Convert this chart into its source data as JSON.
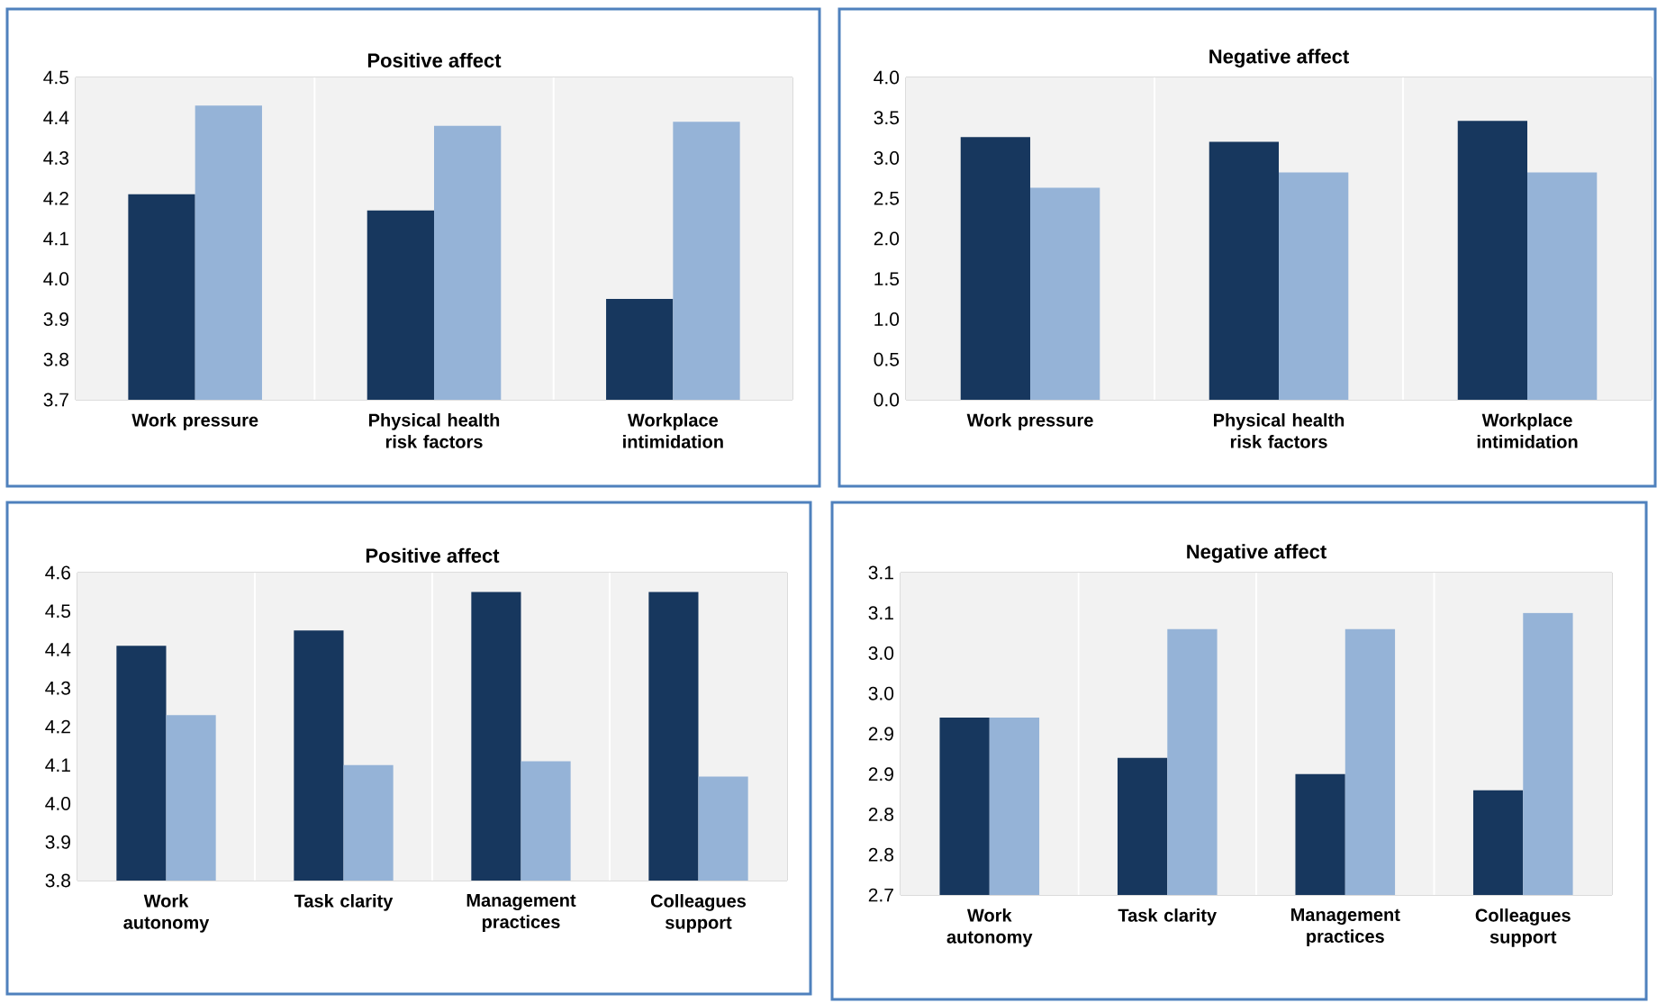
{
  "chart_data": [
    {
      "type": "bar",
      "title": "Positive affect",
      "categories": [
        "Work pressure",
        "Physical health risk factors",
        "Workplace intimidation"
      ],
      "series": [
        {
          "color": "#17375e",
          "values": [
            4.21,
            4.17,
            3.95
          ]
        },
        {
          "color": "#95b3d7",
          "values": [
            4.43,
            4.38,
            4.39
          ]
        }
      ],
      "ylim": [
        3.7,
        4.5
      ],
      "yticks": [
        3.7,
        3.8,
        3.9,
        {
          "value": 4,
          "label": "4.0"
        },
        4.1,
        4.2,
        4.3,
        4.4,
        4.5
      ],
      "grid": "x"
    },
    {
      "type": "bar",
      "title": "Negative affect",
      "categories": [
        "Work pressure",
        "Physical health risk factors",
        "Workplace intimidation"
      ],
      "series": [
        {
          "color": "#17375e",
          "values": [
            3.26,
            3.2,
            3.46
          ]
        },
        {
          "color": "#95b3d7",
          "values": [
            2.63,
            2.82,
            2.82
          ]
        }
      ],
      "ylim": [
        0,
        4
      ],
      "yticks": [
        {
          "value": 0,
          "label": "0.0"
        },
        0.5,
        {
          "value": 1,
          "label": "1.0"
        },
        1.5,
        {
          "value": 2,
          "label": "2.0"
        },
        2.5,
        {
          "value": 3,
          "label": "3.0"
        },
        3.5,
        {
          "value": 4,
          "label": "4.0"
        }
      ],
      "grid": "x"
    },
    {
      "type": "bar",
      "title": "Positive affect",
      "categories": [
        "Work autonomy",
        "Task clarity",
        "Management practices",
        "Colleagues support"
      ],
      "series": [
        {
          "color": "#17375e",
          "values": [
            4.41,
            4.45,
            4.55,
            4.55
          ]
        },
        {
          "color": "#95b3d7",
          "values": [
            4.23,
            4.1,
            4.11,
            4.07
          ]
        }
      ],
      "ylim": [
        3.8,
        4.6
      ],
      "yticks": [
        3.8,
        3.9,
        {
          "value": 4,
          "label": "4.0"
        },
        4.1,
        4.2,
        4.3,
        4.4,
        4.5,
        4.6
      ],
      "grid": "x"
    },
    {
      "type": "bar",
      "title": "Negative affect",
      "categories": [
        "Work autonomy",
        "Task clarity",
        "Management practices",
        "Colleagues support"
      ],
      "series": [
        {
          "color": "#17375e",
          "values": [
            2.92,
            2.87,
            2.85,
            2.83
          ]
        },
        {
          "color": "#95b3d7",
          "values": [
            2.92,
            3.03,
            3.03,
            3.05
          ]
        }
      ],
      "ylim": [
        2.7,
        3.1
      ],
      "yticks": [
        2.7,
        {
          "value": 2.75,
          "label": "2.8"
        },
        2.8,
        {
          "value": 2.85,
          "label": "2.9"
        },
        2.9,
        {
          "value": 2.95,
          "label": "3.0"
        },
        {
          "value": 3,
          "label": "3.0"
        },
        {
          "value": 3.05,
          "label": "3.1"
        },
        3.1
      ],
      "grid": "x"
    }
  ]
}
